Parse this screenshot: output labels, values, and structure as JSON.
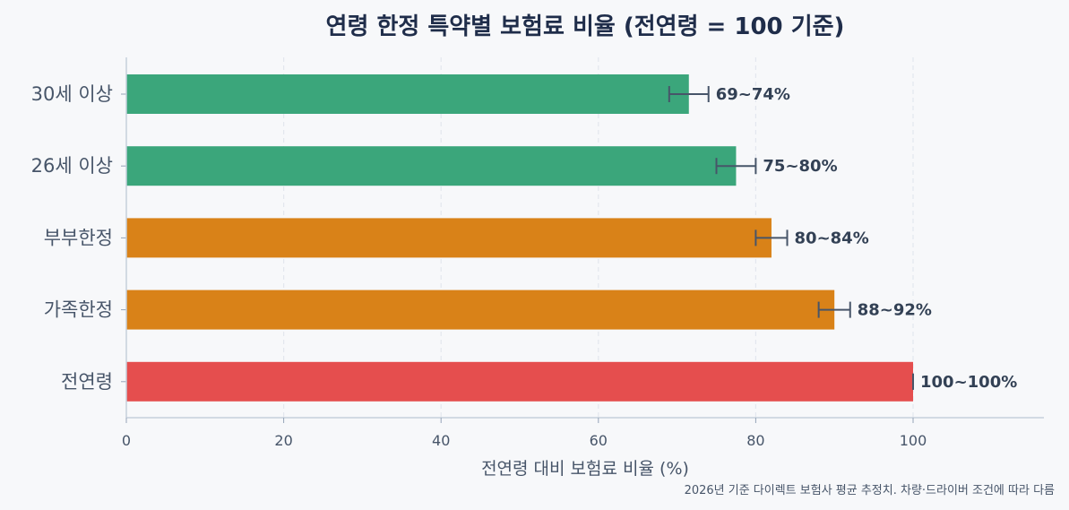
{
  "chart_data": {
    "type": "bar",
    "orientation": "horizontal",
    "title": "연령 한정 특약별 보험료 비율 (전연령 = 100 기준)",
    "xlabel": "전연령 대비 보험료 비율 (%)",
    "ylabel": "",
    "xlim": [
      0,
      116
    ],
    "xticks": [
      0,
      20,
      40,
      60,
      80,
      100
    ],
    "grid": "x-dashed",
    "categories": [
      "30세 이상",
      "26세 이상",
      "부부한정",
      "가족한정",
      "전연령"
    ],
    "values": [
      71.5,
      77.5,
      82,
      90,
      100
    ],
    "ranges": [
      [
        69,
        74
      ],
      [
        75,
        80
      ],
      [
        80,
        84
      ],
      [
        88,
        92
      ],
      [
        100,
        100
      ]
    ],
    "labels": [
      "69~74%",
      "75~80%",
      "80~84%",
      "88~92%",
      "100~100%"
    ],
    "colors": [
      "#3ba67b",
      "#3ba67b",
      "#d98218",
      "#d98218",
      "#e54e4e"
    ],
    "footnote": "2026년 기준 다이렉트 보험사 평균 추정치. 차량·드라이버 조건에 따라 다름"
  }
}
